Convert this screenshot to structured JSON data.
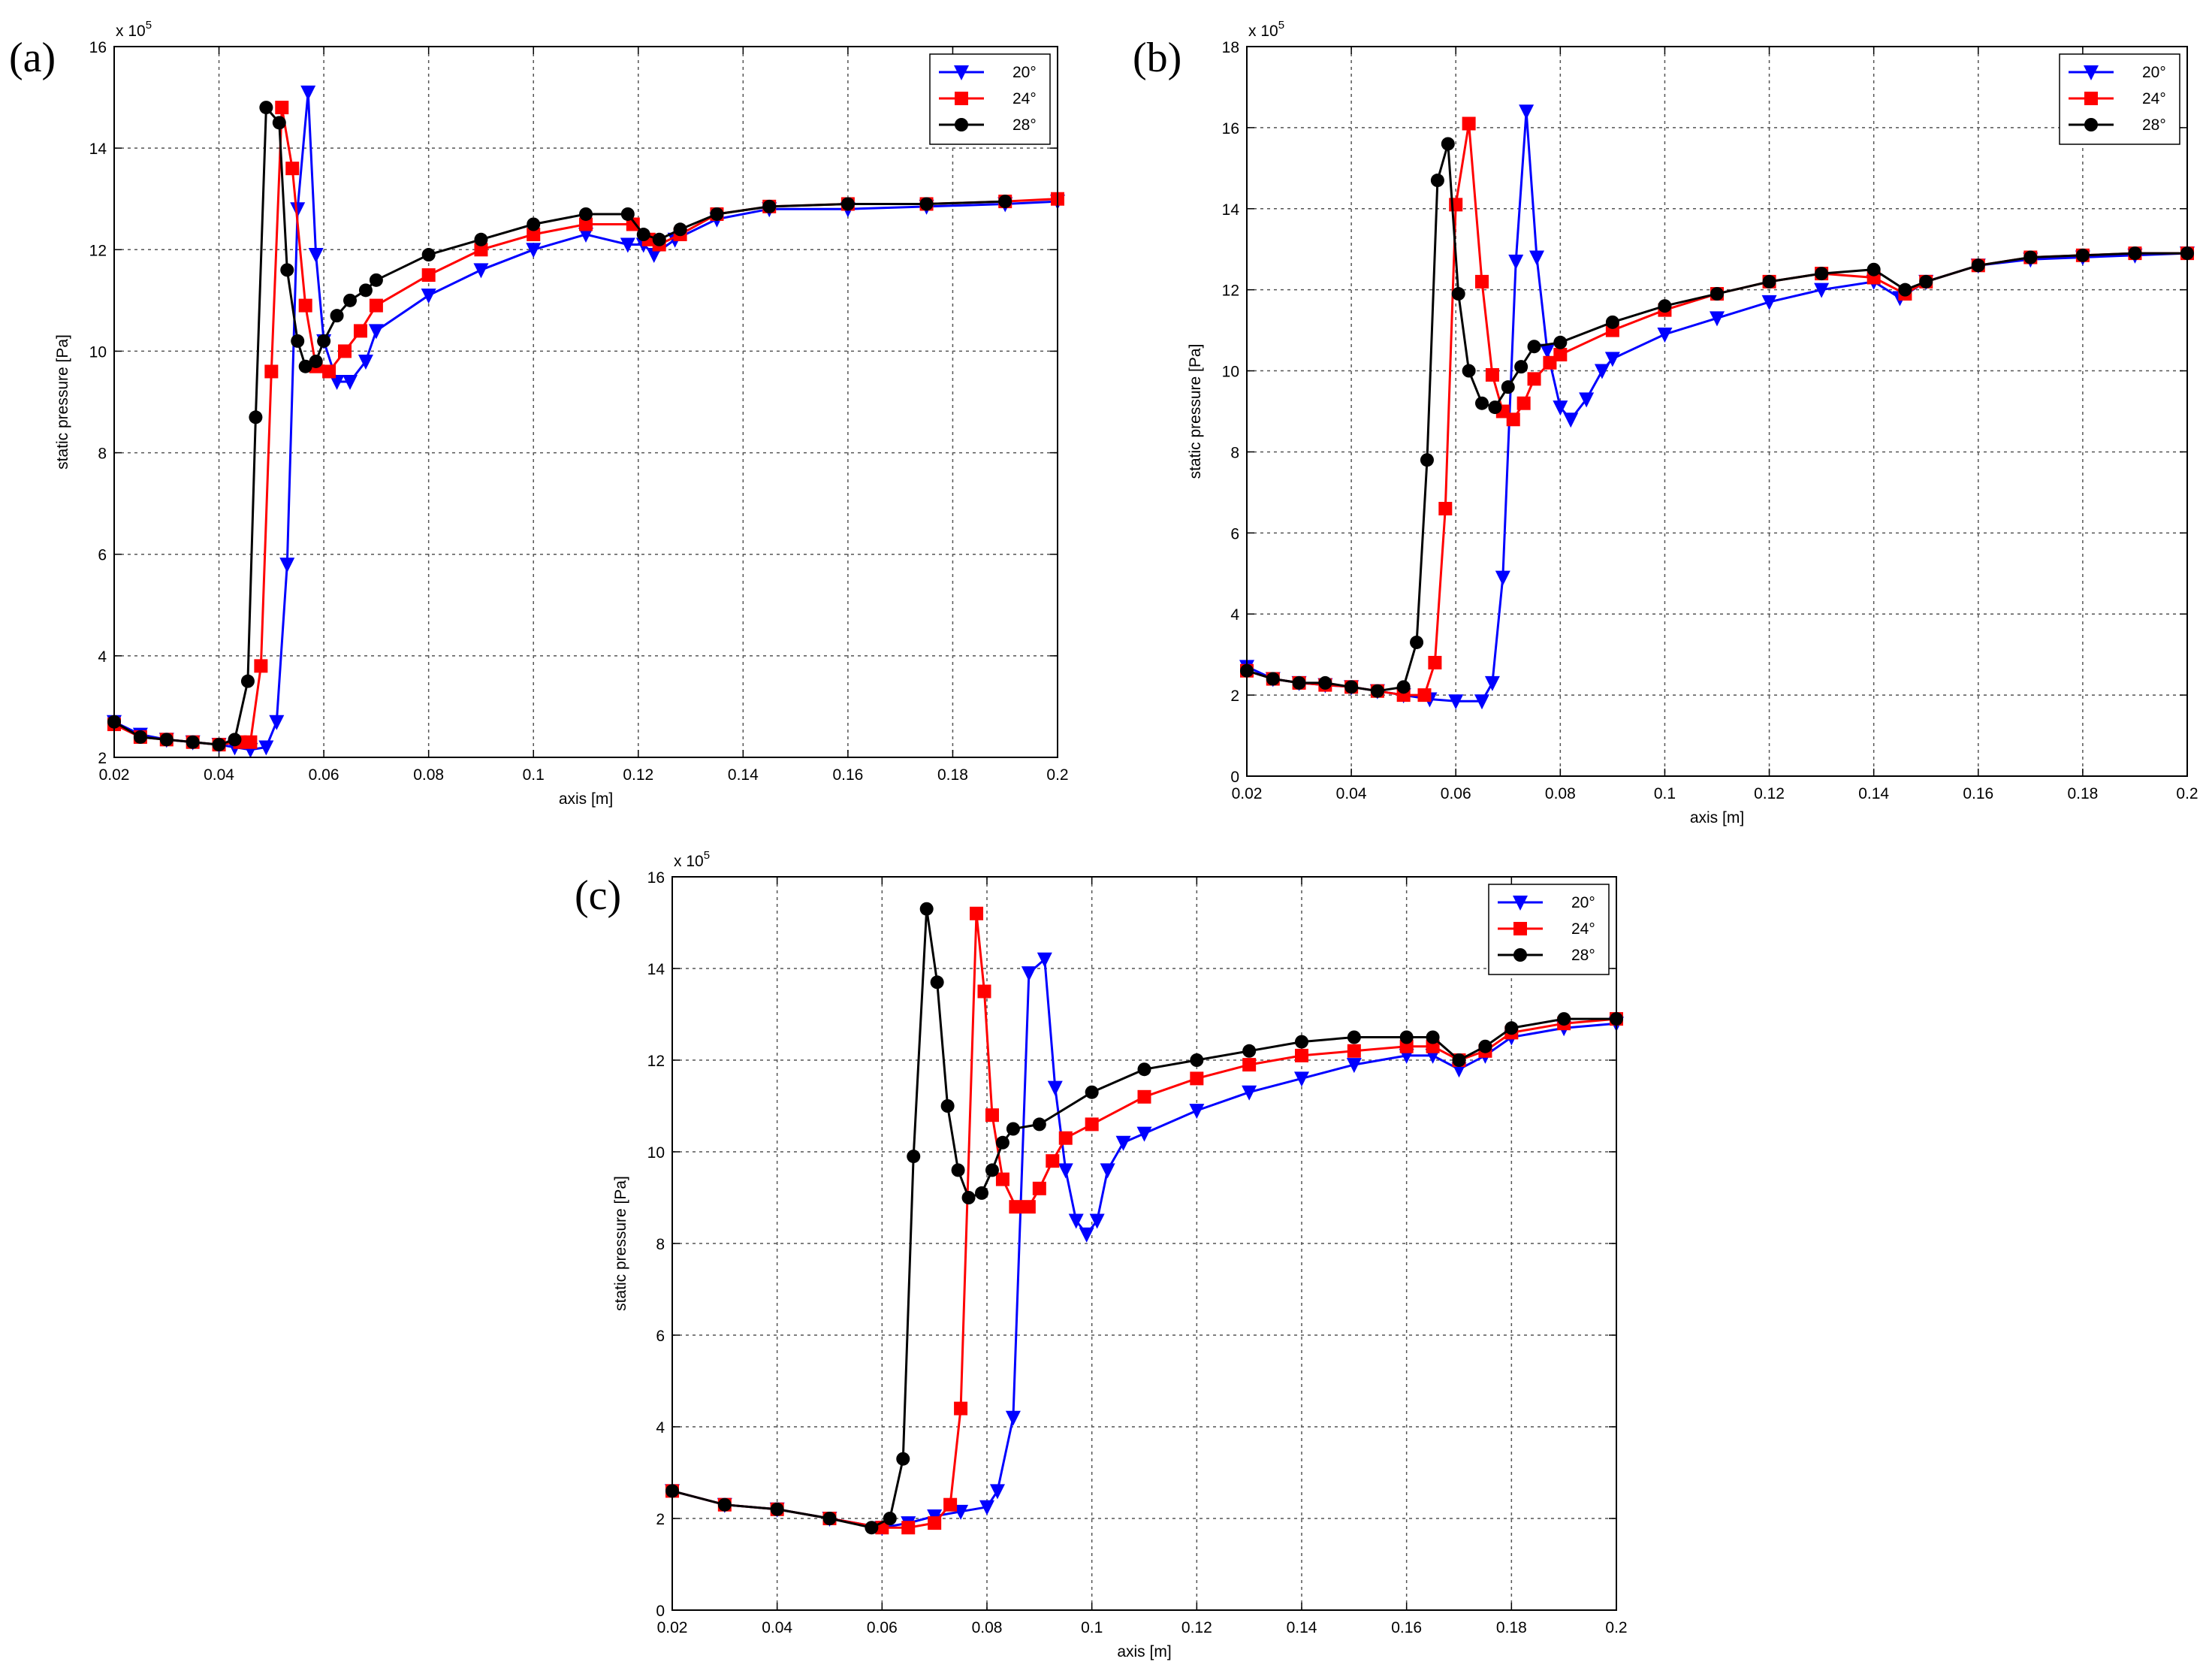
{
  "figure": {
    "panel_labels": [
      "(a)",
      "(b)",
      "(c)"
    ]
  },
  "chart_data": [
    {
      "panel": "(a)",
      "type": "line",
      "xlabel": "axis [m]",
      "ylabel": "static pressure [Pa]",
      "y_multiplier": "x 10^5",
      "xlim": [
        0.02,
        0.2
      ],
      "ylim": [
        2,
        16
      ],
      "xticks": [
        "0.02",
        "0.04",
        "0.06",
        "0.08",
        "0.1",
        "0.12",
        "0.14",
        "0.16",
        "0.18",
        "0.2"
      ],
      "yticks": [
        "2",
        "4",
        "6",
        "8",
        "10",
        "12",
        "14",
        "16"
      ],
      "grid": true,
      "legend_position": "top-right",
      "series": [
        {
          "name": "20°",
          "color": "#0000ff",
          "marker": "triangle-down",
          "x": [
            0.02,
            0.025,
            0.03,
            0.035,
            0.04,
            0.043,
            0.046,
            0.049,
            0.051,
            0.053,
            0.055,
            0.057,
            0.0585,
            0.06,
            0.0625,
            0.065,
            0.068,
            0.07,
            0.08,
            0.09,
            0.1,
            0.11,
            0.118,
            0.121,
            0.123,
            0.127,
            0.135,
            0.145,
            0.16,
            0.175,
            0.19,
            0.2
          ],
          "y": [
            2.7,
            2.45,
            2.35,
            2.3,
            2.25,
            2.2,
            2.15,
            2.2,
            2.7,
            5.8,
            12.8,
            15.1,
            11.9,
            10.2,
            9.4,
            9.4,
            9.8,
            10.4,
            11.1,
            11.6,
            12.0,
            12.3,
            12.1,
            12.1,
            11.9,
            12.2,
            12.6,
            12.8,
            12.8,
            12.85,
            12.9,
            12.95
          ]
        },
        {
          "name": "24°",
          "color": "#ff0000",
          "marker": "square",
          "x": [
            0.02,
            0.025,
            0.03,
            0.035,
            0.04,
            0.044,
            0.046,
            0.048,
            0.05,
            0.052,
            0.054,
            0.0565,
            0.0585,
            0.061,
            0.064,
            0.067,
            0.07,
            0.08,
            0.09,
            0.1,
            0.11,
            0.119,
            0.122,
            0.124,
            0.128,
            0.135,
            0.145,
            0.16,
            0.175,
            0.19,
            0.2
          ],
          "y": [
            2.65,
            2.4,
            2.35,
            2.3,
            2.25,
            2.3,
            2.3,
            3.8,
            9.6,
            14.8,
            13.6,
            10.9,
            9.7,
            9.6,
            10.0,
            10.4,
            10.9,
            11.5,
            12.0,
            12.3,
            12.5,
            12.5,
            12.2,
            12.1,
            12.3,
            12.7,
            12.85,
            12.9,
            12.9,
            12.95,
            13.0
          ]
        },
        {
          "name": "28°",
          "color": "#000000",
          "marker": "circle",
          "x": [
            0.02,
            0.025,
            0.03,
            0.035,
            0.04,
            0.043,
            0.0455,
            0.047,
            0.049,
            0.0515,
            0.053,
            0.055,
            0.0565,
            0.0585,
            0.06,
            0.0625,
            0.065,
            0.068,
            0.07,
            0.08,
            0.09,
            0.1,
            0.11,
            0.118,
            0.121,
            0.124,
            0.128,
            0.135,
            0.145,
            0.16,
            0.175,
            0.19
          ],
          "y": [
            2.7,
            2.4,
            2.35,
            2.3,
            2.25,
            2.35,
            3.5,
            8.7,
            14.8,
            14.5,
            11.6,
            10.2,
            9.7,
            9.8,
            10.2,
            10.7,
            11.0,
            11.2,
            11.4,
            11.9,
            12.2,
            12.5,
            12.7,
            12.7,
            12.3,
            12.2,
            12.4,
            12.7,
            12.85,
            12.9,
            12.9,
            12.95
          ]
        }
      ]
    },
    {
      "panel": "(b)",
      "type": "line",
      "xlabel": "axis [m]",
      "ylabel": "static pressure [Pa]",
      "y_multiplier": "x 10^5",
      "xlim": [
        0.02,
        0.2
      ],
      "ylim": [
        0,
        18
      ],
      "xticks": [
        "0.02",
        "0.04",
        "0.06",
        "0.08",
        "0.1",
        "0.12",
        "0.14",
        "0.16",
        "0.18",
        "0.2"
      ],
      "yticks": [
        "0",
        "2",
        "4",
        "6",
        "8",
        "10",
        "12",
        "14",
        "16",
        "18"
      ],
      "grid": true,
      "legend_position": "top-right",
      "series": [
        {
          "name": "20°",
          "color": "#0000ff",
          "marker": "triangle-down",
          "x": [
            0.02,
            0.025,
            0.03,
            0.035,
            0.04,
            0.045,
            0.05,
            0.055,
            0.06,
            0.065,
            0.067,
            0.069,
            0.0715,
            0.0735,
            0.0755,
            0.0775,
            0.08,
            0.082,
            0.085,
            0.088,
            0.09,
            0.1,
            0.11,
            0.12,
            0.13,
            0.14,
            0.145,
            0.15,
            0.16,
            0.17,
            0.18,
            0.19,
            0.2
          ],
          "y": [
            2.7,
            2.4,
            2.3,
            2.25,
            2.2,
            2.1,
            2.0,
            1.9,
            1.85,
            1.85,
            2.3,
            4.9,
            12.7,
            16.4,
            12.8,
            10.5,
            9.1,
            8.8,
            9.3,
            10.0,
            10.3,
            10.9,
            11.3,
            11.7,
            12.0,
            12.2,
            11.8,
            12.2,
            12.6,
            12.75,
            12.8,
            12.85,
            12.9
          ]
        },
        {
          "name": "24°",
          "color": "#ff0000",
          "marker": "square",
          "x": [
            0.02,
            0.025,
            0.03,
            0.035,
            0.04,
            0.045,
            0.05,
            0.054,
            0.056,
            0.058,
            0.06,
            0.0625,
            0.065,
            0.067,
            0.069,
            0.071,
            0.073,
            0.075,
            0.078,
            0.08,
            0.09,
            0.1,
            0.11,
            0.12,
            0.13,
            0.14,
            0.146,
            0.15,
            0.16,
            0.17,
            0.18,
            0.19,
            0.2
          ],
          "y": [
            2.6,
            2.4,
            2.3,
            2.25,
            2.2,
            2.1,
            2.0,
            2.0,
            2.8,
            6.6,
            14.1,
            16.1,
            12.2,
            9.9,
            9.0,
            8.8,
            9.2,
            9.8,
            10.2,
            10.4,
            11.0,
            11.5,
            11.9,
            12.2,
            12.4,
            12.3,
            11.9,
            12.2,
            12.6,
            12.8,
            12.85,
            12.9,
            12.9
          ]
        },
        {
          "name": "28°",
          "color": "#000000",
          "marker": "circle",
          "x": [
            0.02,
            0.025,
            0.03,
            0.035,
            0.04,
            0.045,
            0.05,
            0.0525,
            0.0545,
            0.0565,
            0.0585,
            0.0605,
            0.0625,
            0.065,
            0.0675,
            0.07,
            0.0725,
            0.075,
            0.08,
            0.09,
            0.1,
            0.11,
            0.12,
            0.13,
            0.14,
            0.146,
            0.15,
            0.16,
            0.17,
            0.18,
            0.19,
            0.2
          ],
          "y": [
            2.6,
            2.4,
            2.3,
            2.3,
            2.2,
            2.1,
            2.2,
            3.3,
            7.8,
            14.7,
            15.6,
            11.9,
            10.0,
            9.2,
            9.1,
            9.6,
            10.1,
            10.6,
            10.7,
            11.2,
            11.6,
            11.9,
            12.2,
            12.4,
            12.5,
            12.0,
            12.2,
            12.6,
            12.8,
            12.85,
            12.9,
            12.9
          ]
        }
      ]
    },
    {
      "panel": "(c)",
      "type": "line",
      "xlabel": "axis [m]",
      "ylabel": "static pressure [Pa]",
      "y_multiplier": "x 10^5",
      "xlim": [
        0.02,
        0.2
      ],
      "ylim": [
        0,
        16
      ],
      "xticks": [
        "0.02",
        "0.04",
        "0.06",
        "0.08",
        "0.1",
        "0.12",
        "0.14",
        "0.16",
        "0.18",
        "0.2"
      ],
      "yticks": [
        "0",
        "2",
        "4",
        "6",
        "8",
        "10",
        "12",
        "14",
        "16"
      ],
      "grid": true,
      "legend_position": "top-right",
      "series": [
        {
          "name": "20°",
          "color": "#0000ff",
          "marker": "triangle-down",
          "x": [
            0.02,
            0.03,
            0.04,
            0.05,
            0.06,
            0.065,
            0.07,
            0.075,
            0.08,
            0.082,
            0.085,
            0.088,
            0.091,
            0.093,
            0.095,
            0.097,
            0.099,
            0.101,
            0.103,
            0.106,
            0.11,
            0.12,
            0.13,
            0.14,
            0.15,
            0.16,
            0.165,
            0.17,
            0.175,
            0.18,
            0.19,
            0.2
          ],
          "y": [
            2.6,
            2.3,
            2.2,
            2.0,
            1.8,
            1.9,
            2.05,
            2.15,
            2.25,
            2.6,
            4.2,
            13.9,
            14.2,
            11.4,
            9.6,
            8.5,
            8.2,
            8.5,
            9.6,
            10.2,
            10.4,
            10.9,
            11.3,
            11.6,
            11.9,
            12.1,
            12.1,
            11.8,
            12.1,
            12.5,
            12.7,
            12.8
          ]
        },
        {
          "name": "24°",
          "color": "#ff0000",
          "marker": "square",
          "x": [
            0.02,
            0.03,
            0.04,
            0.05,
            0.06,
            0.065,
            0.07,
            0.073,
            0.075,
            0.078,
            0.0795,
            0.081,
            0.083,
            0.0855,
            0.088,
            0.09,
            0.0925,
            0.095,
            0.1,
            0.11,
            0.12,
            0.13,
            0.14,
            0.15,
            0.16,
            0.165,
            0.17,
            0.175,
            0.18,
            0.19,
            0.2
          ],
          "y": [
            2.6,
            2.3,
            2.2,
            2.0,
            1.8,
            1.8,
            1.9,
            2.3,
            4.4,
            15.2,
            13.5,
            10.8,
            9.4,
            8.8,
            8.8,
            9.2,
            9.8,
            10.3,
            10.6,
            11.2,
            11.6,
            11.9,
            12.1,
            12.2,
            12.3,
            12.3,
            12.0,
            12.2,
            12.6,
            12.8,
            12.9
          ]
        },
        {
          "name": "28°",
          "color": "#000000",
          "marker": "circle",
          "x": [
            0.02,
            0.03,
            0.04,
            0.05,
            0.058,
            0.0615,
            0.064,
            0.066,
            0.0685,
            0.0705,
            0.0725,
            0.0745,
            0.0765,
            0.079,
            0.081,
            0.083,
            0.085,
            0.09,
            0.1,
            0.11,
            0.12,
            0.13,
            0.14,
            0.15,
            0.16,
            0.165,
            0.17,
            0.175,
            0.18,
            0.19,
            0.2
          ],
          "y": [
            2.6,
            2.3,
            2.2,
            2.0,
            1.8,
            2.0,
            3.3,
            9.9,
            15.3,
            13.7,
            11.0,
            9.6,
            9.0,
            9.1,
            9.6,
            10.2,
            10.5,
            10.6,
            11.3,
            11.8,
            12.0,
            12.2,
            12.4,
            12.5,
            12.5,
            12.5,
            12.0,
            12.3,
            12.7,
            12.9,
            12.9
          ]
        }
      ]
    }
  ]
}
